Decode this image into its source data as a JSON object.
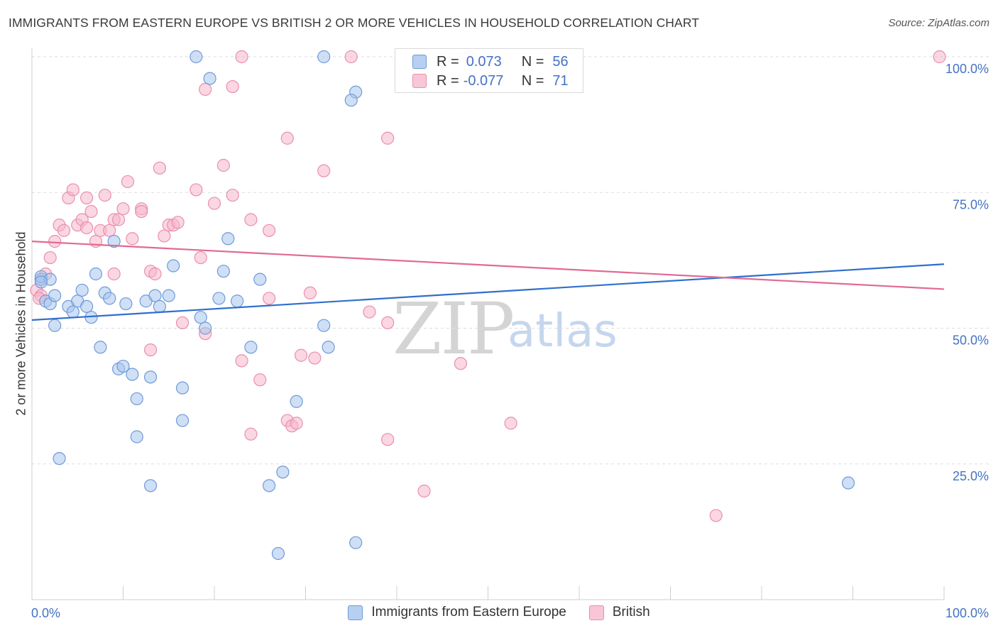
{
  "header": {
    "title": "IMMIGRANTS FROM EASTERN EUROPE VS BRITISH 2 OR MORE VEHICLES IN HOUSEHOLD CORRELATION CHART",
    "source": "Source: ZipAtlas.com"
  },
  "watermark": {
    "zip": "ZIP",
    "atlas": "atlas"
  },
  "legend": {
    "rows": [
      {
        "r_label": "R =",
        "r_value": "0.073",
        "n_label": "N =",
        "n_value": "56"
      },
      {
        "r_label": "R =",
        "r_value": "-0.077",
        "n_label": "N =",
        "n_value": "71"
      }
    ]
  },
  "chart_data": {
    "type": "scatter",
    "title": "IMMIGRANTS FROM EASTERN EUROPE VS BRITISH 2 OR MORE VEHICLES IN HOUSEHOLD CORRELATION CHART",
    "xlabel": "",
    "ylabel": "2 or more Vehicles in Household",
    "xlim": [
      0,
      100
    ],
    "ylim": [
      0,
      102
    ],
    "x_tick_labels": [
      "0.0%",
      "100.0%"
    ],
    "y_ticks": [
      25,
      50,
      75,
      100
    ],
    "y_tick_labels": [
      "25.0%",
      "50.0%",
      "75.0%",
      "100.0%"
    ],
    "grid": true,
    "colors": {
      "series1_fill": "#a8c4ec",
      "series1_stroke": "#6f9bd8",
      "series1_line": "#2f6fcc",
      "series2_fill": "#f5b6cb",
      "series2_stroke": "#e98fae",
      "series2_line": "#e06a94",
      "tick_label": "#4472c4",
      "grid": "#dddddd"
    },
    "series": [
      {
        "name": "Immigrants from Eastern Europe",
        "r": 0.073,
        "n": 56,
        "trend": {
          "x": [
            0,
            100
          ],
          "y": [
            51.5,
            61.8
          ]
        },
        "points": [
          [
            18,
            100
          ],
          [
            32,
            100
          ],
          [
            19.5,
            96
          ],
          [
            35.5,
            93.5
          ],
          [
            35,
            92
          ],
          [
            1,
            59
          ],
          [
            1,
            59.5
          ],
          [
            1.5,
            55
          ],
          [
            2,
            54.5
          ],
          [
            2.5,
            56
          ],
          [
            4,
            54
          ],
          [
            4.5,
            53
          ],
          [
            5,
            55
          ],
          [
            5.5,
            57
          ],
          [
            6,
            54
          ],
          [
            6.5,
            52
          ],
          [
            2.5,
            50.5
          ],
          [
            3,
            26
          ],
          [
            7,
            60
          ],
          [
            7.5,
            46.5
          ],
          [
            8,
            56.5
          ],
          [
            8.5,
            55.5
          ],
          [
            9,
            66
          ],
          [
            9.5,
            42.5
          ],
          [
            10,
            43
          ],
          [
            10.3,
            54.5
          ],
          [
            11,
            41.5
          ],
          [
            11.5,
            37
          ],
          [
            11.5,
            30
          ],
          [
            12.5,
            55
          ],
          [
            13,
            21
          ],
          [
            13,
            41
          ],
          [
            13.5,
            56
          ],
          [
            14,
            54
          ],
          [
            15,
            56
          ],
          [
            15.5,
            61.5
          ],
          [
            16.5,
            39
          ],
          [
            16.5,
            33
          ],
          [
            18.5,
            52
          ],
          [
            19,
            50
          ],
          [
            20.5,
            55.5
          ],
          [
            21,
            60.5
          ],
          [
            21.5,
            66.5
          ],
          [
            22.5,
            55
          ],
          [
            24,
            46.5
          ],
          [
            25,
            59
          ],
          [
            26,
            21
          ],
          [
            27,
            8.5
          ],
          [
            27.5,
            23.5
          ],
          [
            29,
            36.5
          ],
          [
            32,
            50.5
          ],
          [
            32.5,
            46.5
          ],
          [
            35.5,
            10.5
          ],
          [
            89.5,
            21.5
          ],
          [
            2,
            59
          ],
          [
            1,
            58.5
          ]
        ]
      },
      {
        "name": "British",
        "r": -0.077,
        "n": 71,
        "trend": {
          "x": [
            0,
            100
          ],
          "y": [
            66,
            57.2
          ]
        },
        "points": [
          [
            0.5,
            57
          ],
          [
            1,
            59
          ],
          [
            1.5,
            60
          ],
          [
            2,
            63
          ],
          [
            2.5,
            66
          ],
          [
            3,
            69
          ],
          [
            3.5,
            68
          ],
          [
            4,
            74
          ],
          [
            4.5,
            75.5
          ],
          [
            5,
            69
          ],
          [
            5.5,
            70
          ],
          [
            6,
            68.5
          ],
          [
            6,
            74
          ],
          [
            6.5,
            71.5
          ],
          [
            7,
            66
          ],
          [
            7.5,
            68
          ],
          [
            8,
            74.5
          ],
          [
            8.5,
            68
          ],
          [
            9,
            60
          ],
          [
            9,
            70
          ],
          [
            9.5,
            70
          ],
          [
            10,
            72
          ],
          [
            10.5,
            77
          ],
          [
            11,
            66.5
          ],
          [
            12,
            72
          ],
          [
            12,
            71.5
          ],
          [
            13,
            46
          ],
          [
            13,
            60.5
          ],
          [
            13.5,
            60
          ],
          [
            14,
            79.5
          ],
          [
            14.5,
            67
          ],
          [
            15,
            69
          ],
          [
            15.5,
            69
          ],
          [
            16,
            69.5
          ],
          [
            16.5,
            51
          ],
          [
            18,
            75.5
          ],
          [
            18.5,
            63
          ],
          [
            19,
            94
          ],
          [
            19,
            49
          ],
          [
            20,
            73
          ],
          [
            21,
            80
          ],
          [
            22,
            74.5
          ],
          [
            22,
            94.5
          ],
          [
            23,
            44
          ],
          [
            23,
            100
          ],
          [
            24,
            30.5
          ],
          [
            24,
            70
          ],
          [
            25,
            40.5
          ],
          [
            26,
            55.5
          ],
          [
            26,
            68
          ],
          [
            28,
            85
          ],
          [
            28,
            33
          ],
          [
            28.5,
            32
          ],
          [
            29,
            32.5
          ],
          [
            29.5,
            45
          ],
          [
            30.5,
            56.5
          ],
          [
            31,
            44.5
          ],
          [
            32,
            79
          ],
          [
            35,
            100
          ],
          [
            37,
            53
          ],
          [
            39,
            51
          ],
          [
            39,
            85
          ],
          [
            39,
            29.5
          ],
          [
            43,
            20
          ],
          [
            47,
            43.5
          ],
          [
            48,
            100
          ],
          [
            52.5,
            32.5
          ],
          [
            75,
            15.5
          ],
          [
            99.5,
            100
          ],
          [
            1,
            56
          ],
          [
            0.8,
            55.5
          ]
        ]
      }
    ]
  },
  "bottom_legend": {
    "items": [
      "Immigrants from Eastern Europe",
      "British"
    ]
  }
}
